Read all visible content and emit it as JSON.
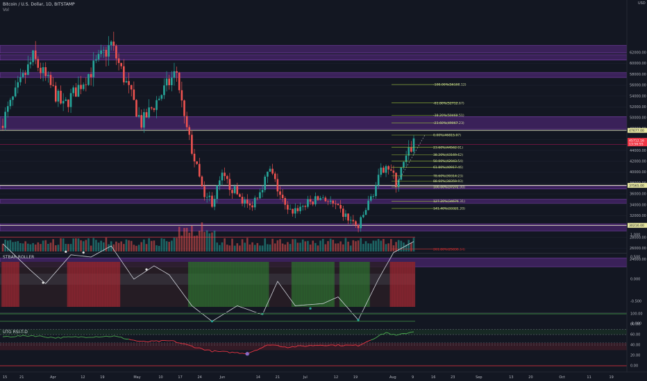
{
  "header": {
    "symbol_line": "Bitcoin / U.S. Dollar, 1D, BITSTAMP",
    "volume_label": "Vol",
    "osc_label": "STBAR ROLLER",
    "rsi_label": "UTG RSI-T-D"
  },
  "colors": {
    "background": "#131722",
    "bull": "#26a69a",
    "bear": "#ef5350",
    "zone": "#5b2a86",
    "fib": "#9bbf3a",
    "price_tag": "#f23645",
    "level_tag": "#e6e6a0",
    "rsi_up": "#4caf50",
    "rsi_down": "#f23645"
  },
  "price_axis": {
    "ticks": [
      "62000.00",
      "60000.00",
      "58000.00",
      "56000.00",
      "54000.00",
      "52000.00",
      "50000.00",
      "48000.00",
      "46000.00",
      "44000.00",
      "42000.00",
      "40000.00",
      "38000.00",
      "36000.00",
      "34000.00",
      "32000.00",
      "30000.00",
      "28000.00",
      "26000.00",
      "24000.00"
    ],
    "currency": "USD",
    "current_price": "45712.16",
    "countdown": "13:56:55",
    "level_tags": [
      "47677.00",
      "37565.00",
      "30216.00"
    ]
  },
  "osc_axis": {
    "ticks": [
      "1.000",
      "0.500",
      "0.000",
      "-0.500",
      "-1.000"
    ]
  },
  "rsi_axis": {
    "ticks": [
      "100.00",
      "80.00",
      "60.00",
      "40.00",
      "20.00",
      "0.00"
    ]
  },
  "time_axis": {
    "labels": [
      "15",
      "21",
      "Apr",
      "12",
      "19",
      "May",
      "10",
      "17",
      "24",
      "Jun",
      "14",
      "21",
      "Jul",
      "12",
      "19",
      "Aug",
      "9",
      "16",
      "23",
      "Sep",
      "13",
      "20",
      "Oct",
      "11",
      "19"
    ]
  },
  "fib_levels": [
    {
      "label": "-100.00%(56108.12)",
      "price": 56108.12
    },
    {
      "label": "-61.80%(52712.67)",
      "price": 52712.67
    },
    {
      "label": "-38.20%(50460.51)",
      "price": 50460.51
    },
    {
      "label": "-23.60%(49067.23)",
      "price": 49067.23
    },
    {
      "label": "0.00%(46815.07)",
      "price": 46815.07
    },
    {
      "label": "23.60%(44562.91)",
      "price": 44562.91
    },
    {
      "label": "38.20%(43169.62)",
      "price": 43169.62
    },
    {
      "label": "50.00%(42043.54)",
      "price": 42043.54
    },
    {
      "label": "61.80%(40917.46)",
      "price": 40917.46
    },
    {
      "label": "78.60%(39314.23)",
      "price": 39314.23
    },
    {
      "label": "88.60%(38359.93)",
      "price": 38359.93
    },
    {
      "label": "100.00%(37272.00)",
      "price": 37272.0
    },
    {
      "label": "127.20%(34676.31)",
      "price": 34676.31
    },
    {
      "label": "141.40%(33321.20)",
      "price": 33321.2
    },
    {
      "label": "261.80%(25830.64)",
      "price": 25830.64
    }
  ],
  "zones": [
    {
      "top": 63300,
      "bottom": 61900
    },
    {
      "top": 61600,
      "bottom": 60600
    },
    {
      "top": 58300,
      "bottom": 57400
    },
    {
      "top": 50200,
      "bottom": 47900
    },
    {
      "top": 37500,
      "bottom": 36900
    },
    {
      "top": 35000,
      "bottom": 34300
    },
    {
      "top": 30500,
      "bottom": 29200
    },
    {
      "top": 24200,
      "bottom": 22600
    }
  ],
  "h_levels": [
    47677,
    45100,
    37565,
    30216
  ],
  "osc_markers": [
    {
      "text": "B",
      "date": "2021-03-26",
      "value": 0.62
    },
    {
      "text": "B",
      "date": "2021-04-02",
      "value": 0.6
    },
    {
      "text": "D",
      "date": "2021-03-17",
      "value": -0.08
    },
    {
      "text": "B",
      "date": "2021-04-27",
      "value": 0.22
    },
    {
      "text": "S",
      "date": "2021-05-23",
      "value": -0.95
    },
    {
      "text": "S",
      "date": "2021-06-12",
      "value": -0.78
    },
    {
      "text": "S",
      "date": "2021-07-01",
      "value": -0.66
    },
    {
      "text": "S",
      "date": "2021-07-20",
      "value": -0.92
    }
  ],
  "rsi_marker": {
    "text": "D",
    "date": "2021-06-06",
    "value": 23
  },
  "chart_data": [
    {
      "type": "candlestick",
      "title": "Bitcoin / U.S. Dollar, 1D, BITSTAMP",
      "x_start": "2021-03-01",
      "x_end": "2021-08-11",
      "ylim": [
        22000,
        64000
      ],
      "close_waypoints": [
        {
          "date": "2021-03-01",
          "close": 49500
        },
        {
          "date": "2021-03-13",
          "close": 61000
        },
        {
          "date": "2021-03-25",
          "close": 52000
        },
        {
          "date": "2021-04-13",
          "close": 63500
        },
        {
          "date": "2021-04-25",
          "close": 49000
        },
        {
          "date": "2021-05-09",
          "close": 58500
        },
        {
          "date": "2021-05-12",
          "close": 49500
        },
        {
          "date": "2021-05-19",
          "close": 37000
        },
        {
          "date": "2021-05-23",
          "close": 34500
        },
        {
          "date": "2021-05-27",
          "close": 39000
        },
        {
          "date": "2021-06-07",
          "close": 33500
        },
        {
          "date": "2021-06-15",
          "close": 40300
        },
        {
          "date": "2021-06-22",
          "close": 32500
        },
        {
          "date": "2021-07-06",
          "close": 35500
        },
        {
          "date": "2021-07-20",
          "close": 29800
        },
        {
          "date": "2021-07-31",
          "close": 42000
        },
        {
          "date": "2021-08-04",
          "close": 38000
        },
        {
          "date": "2021-08-11",
          "close": 45712
        }
      ]
    },
    {
      "type": "bar",
      "title": "Vol",
      "note": "daily volume, highest spike on 2021-05-19"
    },
    {
      "type": "line",
      "title": "STBAR ROLLER",
      "ylim": [
        -1.2,
        1.2
      ],
      "waypoints": [
        {
          "date": "2021-03-01",
          "value": 0.8
        },
        {
          "date": "2021-03-12",
          "value": 0.2
        },
        {
          "date": "2021-03-18",
          "value": -0.1
        },
        {
          "date": "2021-03-28",
          "value": 0.55
        },
        {
          "date": "2021-04-05",
          "value": 0.5
        },
        {
          "date": "2021-04-13",
          "value": 0.75
        },
        {
          "date": "2021-04-22",
          "value": 0.0
        },
        {
          "date": "2021-04-30",
          "value": 0.3
        },
        {
          "date": "2021-05-06",
          "value": 0.1
        },
        {
          "date": "2021-05-15",
          "value": -0.6
        },
        {
          "date": "2021-05-23",
          "value": -0.95
        },
        {
          "date": "2021-06-02",
          "value": -0.6
        },
        {
          "date": "2021-06-12",
          "value": -0.8
        },
        {
          "date": "2021-06-18",
          "value": -0.05
        },
        {
          "date": "2021-06-25",
          "value": -0.6
        },
        {
          "date": "2021-07-06",
          "value": -0.55
        },
        {
          "date": "2021-07-12",
          "value": -0.4
        },
        {
          "date": "2021-07-20",
          "value": -0.92
        },
        {
          "date": "2021-07-28",
          "value": 0.0
        },
        {
          "date": "2021-08-03",
          "value": 0.6
        },
        {
          "date": "2021-08-11",
          "value": 0.85
        }
      ]
    },
    {
      "type": "line",
      "title": "UTG RSI-T-D",
      "ylim": [
        0,
        100
      ],
      "reference_lines": [
        70,
        60,
        44,
        40
      ],
      "waypoints": [
        {
          "date": "2021-03-01",
          "value": 56
        },
        {
          "date": "2021-03-13",
          "value": 58
        },
        {
          "date": "2021-03-22",
          "value": 54
        },
        {
          "date": "2021-04-05",
          "value": 56
        },
        {
          "date": "2021-04-14",
          "value": 57
        },
        {
          "date": "2021-04-25",
          "value": 46
        },
        {
          "date": "2021-05-07",
          "value": 48
        },
        {
          "date": "2021-05-17",
          "value": 35
        },
        {
          "date": "2021-05-23",
          "value": 28
        },
        {
          "date": "2021-06-06",
          "value": 24
        },
        {
          "date": "2021-06-15",
          "value": 41
        },
        {
          "date": "2021-06-22",
          "value": 36
        },
        {
          "date": "2021-07-05",
          "value": 40
        },
        {
          "date": "2021-07-20",
          "value": 39
        },
        {
          "date": "2021-07-31",
          "value": 64
        },
        {
          "date": "2021-08-04",
          "value": 58
        },
        {
          "date": "2021-08-11",
          "value": 66
        }
      ]
    }
  ]
}
